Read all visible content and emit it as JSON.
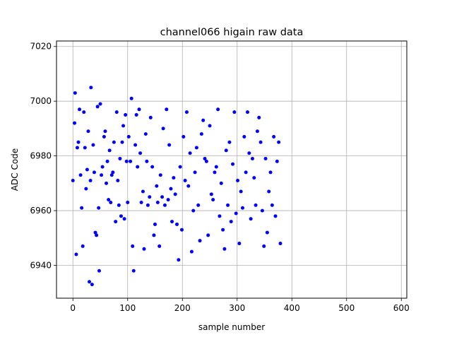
{
  "chart_data": {
    "type": "scatter",
    "title": "channel066 higain raw data",
    "xlabel": "sample number",
    "ylabel": "ADC Code",
    "xlim": [
      -30,
      610
    ],
    "ylim": [
      6928,
      7022
    ],
    "xticks": [
      0,
      100,
      200,
      300,
      400,
      500,
      600
    ],
    "yticks": [
      6940,
      6960,
      6980,
      7000,
      7020
    ],
    "grid": true,
    "marker_color": "#0000ff",
    "series": [
      {
        "values": [
          6971,
          6992,
          7003,
          6944,
          6983,
          6985,
          6997,
          6973,
          6961,
          6947,
          6996,
          6983,
          6968,
          6975,
          6989,
          6934,
          6971,
          7005,
          6933,
          6984,
          6974,
          6952,
          6951,
          6998,
          6961,
          6938,
          6999,
          6973,
          6976,
          6987,
          6989,
          6970,
          6978,
          6964,
          6982,
          6963,
          6973,
          6974,
          6985,
          6956,
          6996,
          6971,
          6962,
          6979,
          6958,
          6985,
          6991,
          6957,
          6995,
          6978,
          6963,
          6987,
          6978,
          7001,
          6947,
          6938,
          6984,
          6995,
          6976,
          6997,
          6981,
          6963,
          6967,
          6946,
          6988,
          6978,
          6962,
          6965,
          6994,
          6976,
          6951,
          6955,
          6969,
          6963,
          6947,
          6973,
          6965,
          6990,
          6962,
          6997,
          6964,
          6984,
          6968,
          6956,
          6972,
          6966,
          6955,
          6942,
          6976,
          6953,
          6987,
          6971,
          6996,
          6969,
          6981,
          6945,
          6960,
          6974,
          6983,
          6962,
          6949,
          6988,
          6993,
          6979,
          6978,
          6951,
          6991,
          6966,
          6964,
          6974,
          6976,
          6997,
          6958,
          6970,
          6953,
          6946,
          6982,
          6962,
          6985,
          6956,
          6977,
          6996,
          6959,
          6971,
          6948,
          6967,
          6961,
          6987,
          6974,
          6996,
          6981,
          6957,
          6979,
          6972,
          6962,
          6989,
          6994,
          6985,
          6960,
          6947,
          6979,
          6952,
          6967,
          6974,
          6962,
          6987,
          6958,
          6978,
          6985,
          6948
        ]
      }
    ],
    "x_values": [
      0,
      3,
      4,
      6,
      8,
      10,
      12,
      14,
      16,
      18,
      20,
      22,
      24,
      26,
      28,
      30,
      32,
      33,
      35,
      37,
      39,
      41,
      43,
      45,
      47,
      48,
      50,
      52,
      54,
      57,
      59,
      61,
      63,
      65,
      67,
      69,
      71,
      73,
      75,
      78,
      80,
      82,
      84,
      86,
      88,
      90,
      92,
      94,
      96,
      98,
      100,
      102,
      105,
      107,
      109,
      111,
      114,
      116,
      118,
      121,
      123,
      125,
      128,
      130,
      133,
      135,
      137,
      140,
      142,
      145,
      148,
      150,
      153,
      155,
      158,
      160,
      163,
      165,
      168,
      171,
      174,
      176,
      179,
      181,
      184,
      187,
      190,
      193,
      196,
      199,
      202,
      205,
      208,
      211,
      214,
      217,
      220,
      223,
      226,
      229,
      232,
      235,
      238,
      241,
      244,
      247,
      250,
      253,
      256,
      259,
      262,
      265,
      268,
      271,
      274,
      277,
      280,
      283,
      286,
      289,
      292,
      295,
      298,
      301,
      304,
      307,
      310,
      313,
      316,
      319,
      322,
      325,
      328,
      331,
      334,
      337,
      340,
      343,
      346,
      349,
      352,
      355,
      358,
      361,
      364,
      367,
      370,
      373,
      376,
      379
    ]
  }
}
